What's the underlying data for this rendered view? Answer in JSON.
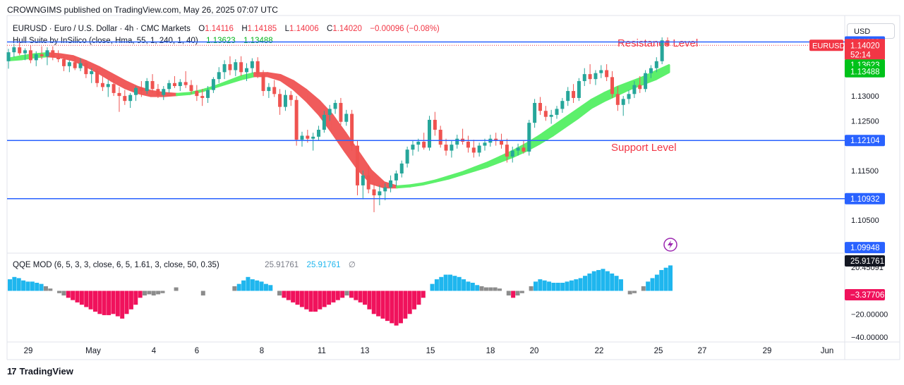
{
  "publisher_line": "CROWNGIMS published on TradingView.com, May 26, 2025 07:07 UTC",
  "currency_button": "USD",
  "footer_logo": "TradingView",
  "symbol_legend": {
    "symbol": "EURUSD",
    "name": "Euro / U.S. Dollar",
    "interval": "4h",
    "source": "CMC Markets",
    "open_label": "O",
    "open": "1.14116",
    "high_label": "H",
    "high": "1.14185",
    "low_label": "L",
    "low": "1.14006",
    "close_label": "C",
    "close": "1.14020",
    "change": "−0.00096 (−0.08%)"
  },
  "hull_legend": {
    "label": "Hull Suite by InSilico (close, Hma, 55, 1, 240, 1, 40)",
    "value1": "1.13623",
    "value2": "1.13488"
  },
  "qqe_legend": {
    "label": "QQE MOD (6, 5, 3, 3, close, 6, 5, 1.61, 3, close, 50, 0.35)",
    "value1": "25.91761",
    "value2": "25.91761",
    "value3": "∅"
  },
  "annotations": {
    "resistance": "Resistance Level",
    "support": "Support Level"
  },
  "colors": {
    "up": "#26a69a",
    "down": "#ef5350",
    "hull_up": "#5cf06b",
    "hull_down": "#f05b5b",
    "level_line": "#2962ff",
    "qqe_pos": "#1fb6ee",
    "qqe_neg": "#f0125c",
    "qqe_neutral": "#8c8c8c",
    "annotation": "#f23645"
  },
  "chart_data": [
    {
      "type": "candlestick",
      "symbol": "EURUSD",
      "interval": "4h",
      "x_ticks": [
        "29",
        "May",
        "4",
        "6",
        "8",
        "11",
        "13",
        "15",
        "18",
        "20",
        "22",
        "25",
        "27",
        "29",
        "Jun"
      ],
      "y_ticks": [
        "1.13000",
        "1.12500",
        "1.11500",
        "1.10500"
      ],
      "ylim": [
        1.0985,
        1.1462
      ],
      "horizontal_levels": [
        {
          "label": "1.14088",
          "value": 1.14088
        },
        {
          "label": "1.12104",
          "value": 1.12104
        },
        {
          "label": "1.10932",
          "value": 1.10932
        }
      ],
      "price_badges": [
        {
          "label": "EURUSD",
          "value": "1.14020",
          "countdown": "52:14",
          "color": "#f23645"
        },
        {
          "label": "",
          "value": "1.13623",
          "color": "#00c21a"
        },
        {
          "label": "",
          "value": "1.13488",
          "color": "#00c21a"
        },
        {
          "label": "",
          "value": "1.09948",
          "color": "#2962ff"
        }
      ],
      "candles": [
        [
          1.137,
          1.1395,
          1.1355,
          1.1388
        ],
        [
          1.1388,
          1.1405,
          1.1378,
          1.1398
        ],
        [
          1.1398,
          1.141,
          1.1382,
          1.1386
        ],
        [
          1.1386,
          1.1396,
          1.1372,
          1.1392
        ],
        [
          1.1392,
          1.1402,
          1.1366,
          1.1372
        ],
        [
          1.1372,
          1.139,
          1.136,
          1.1384
        ],
        [
          1.1384,
          1.14,
          1.1374,
          1.138
        ],
        [
          1.138,
          1.1398,
          1.1362,
          1.1392
        ],
        [
          1.1392,
          1.14,
          1.1372,
          1.1378
        ],
        [
          1.1378,
          1.1392,
          1.1368,
          1.1374
        ],
        [
          1.1374,
          1.138,
          1.135,
          1.136
        ],
        [
          1.136,
          1.1372,
          1.1348,
          1.1368
        ],
        [
          1.1368,
          1.138,
          1.1352,
          1.1356
        ],
        [
          1.1356,
          1.1376,
          1.135,
          1.1366
        ],
        [
          1.1366,
          1.1372,
          1.1336,
          1.1344
        ],
        [
          1.1344,
          1.1356,
          1.1326,
          1.135
        ],
        [
          1.135,
          1.1356,
          1.1318,
          1.1326
        ],
        [
          1.1326,
          1.134,
          1.131,
          1.1318
        ],
        [
          1.1318,
          1.1332,
          1.1298,
          1.1324
        ],
        [
          1.1324,
          1.1336,
          1.13,
          1.1306
        ],
        [
          1.1306,
          1.1318,
          1.1268,
          1.13
        ],
        [
          1.13,
          1.1312,
          1.1282,
          1.129
        ],
        [
          1.129,
          1.1306,
          1.1276,
          1.1302
        ],
        [
          1.1302,
          1.132,
          1.129,
          1.1316
        ],
        [
          1.1316,
          1.133,
          1.1298,
          1.131
        ],
        [
          1.131,
          1.1336,
          1.1304,
          1.133
        ],
        [
          1.133,
          1.1344,
          1.1306,
          1.1314
        ],
        [
          1.1314,
          1.1324,
          1.1296,
          1.1302
        ],
        [
          1.1302,
          1.132,
          1.1292,
          1.1314
        ],
        [
          1.1314,
          1.1332,
          1.1306,
          1.1326
        ],
        [
          1.1326,
          1.134,
          1.1316,
          1.132
        ],
        [
          1.132,
          1.1334,
          1.131,
          1.1328
        ],
        [
          1.1328,
          1.135,
          1.1316,
          1.1322
        ],
        [
          1.1322,
          1.1332,
          1.1304,
          1.131
        ],
        [
          1.131,
          1.1322,
          1.129,
          1.13
        ],
        [
          1.13,
          1.1314,
          1.128,
          1.1296
        ],
        [
          1.1296,
          1.132,
          1.1286,
          1.1312
        ],
        [
          1.1312,
          1.1338,
          1.1306,
          1.1334
        ],
        [
          1.1334,
          1.1358,
          1.1326,
          1.1348
        ],
        [
          1.1348,
          1.1372,
          1.1334,
          1.1364
        ],
        [
          1.1364,
          1.138,
          1.1342,
          1.1352
        ],
        [
          1.1352,
          1.1374,
          1.134,
          1.1368
        ],
        [
          1.1368,
          1.138,
          1.134,
          1.1348
        ],
        [
          1.1348,
          1.1366,
          1.133,
          1.1356
        ],
        [
          1.1356,
          1.1376,
          1.1346,
          1.137
        ],
        [
          1.137,
          1.1378,
          1.1336,
          1.1344
        ],
        [
          1.1344,
          1.1352,
          1.13,
          1.131
        ],
        [
          1.131,
          1.1326,
          1.1296,
          1.1318
        ],
        [
          1.1318,
          1.1332,
          1.1298,
          1.1304
        ],
        [
          1.1304,
          1.1314,
          1.1262,
          1.1278
        ],
        [
          1.1278,
          1.1312,
          1.127,
          1.1302
        ],
        [
          1.1302,
          1.131,
          1.128,
          1.1292
        ],
        [
          1.1292,
          1.13,
          1.12,
          1.1212
        ],
        [
          1.1212,
          1.1228,
          1.1198,
          1.122
        ],
        [
          1.122,
          1.1232,
          1.1206,
          1.1214
        ],
        [
          1.1214,
          1.1226,
          1.119,
          1.1218
        ],
        [
          1.1218,
          1.124,
          1.121,
          1.1232
        ],
        [
          1.1232,
          1.127,
          1.1226,
          1.1262
        ],
        [
          1.1262,
          1.1282,
          1.125,
          1.1274
        ],
        [
          1.1274,
          1.1292,
          1.1264,
          1.1286
        ],
        [
          1.1286,
          1.1296,
          1.1242,
          1.1248
        ],
        [
          1.1248,
          1.1272,
          1.124,
          1.1264
        ],
        [
          1.1264,
          1.1272,
          1.119,
          1.12
        ],
        [
          1.12,
          1.121,
          1.11,
          1.112
        ],
        [
          1.112,
          1.115,
          1.1092,
          1.114
        ],
        [
          1.114,
          1.116,
          1.1104,
          1.1112
        ],
        [
          1.1112,
          1.1126,
          1.1066,
          1.11
        ],
        [
          1.11,
          1.112,
          1.108,
          1.1108
        ],
        [
          1.1108,
          1.1124,
          1.109,
          1.1116
        ],
        [
          1.1116,
          1.114,
          1.1106,
          1.113
        ],
        [
          1.113,
          1.115,
          1.1118,
          1.1144
        ],
        [
          1.1144,
          1.117,
          1.1136,
          1.1164
        ],
        [
          1.1164,
          1.1198,
          1.1156,
          1.1192
        ],
        [
          1.1192,
          1.121,
          1.118,
          1.1202
        ],
        [
          1.1202,
          1.1214,
          1.1188,
          1.1208
        ],
        [
          1.1208,
          1.1226,
          1.1192,
          1.1196
        ],
        [
          1.1196,
          1.126,
          1.119,
          1.1252
        ],
        [
          1.1252,
          1.1268,
          1.122,
          1.1232
        ],
        [
          1.1232,
          1.124,
          1.1196,
          1.1202
        ],
        [
          1.1202,
          1.1214,
          1.118,
          1.119
        ],
        [
          1.119,
          1.121,
          1.1176,
          1.1202
        ],
        [
          1.1202,
          1.1222,
          1.1194,
          1.1214
        ],
        [
          1.1214,
          1.1234,
          1.1202,
          1.1208
        ],
        [
          1.1208,
          1.122,
          1.1186,
          1.1196
        ],
        [
          1.1196,
          1.1212,
          1.1176,
          1.1186
        ],
        [
          1.1186,
          1.1206,
          1.1178,
          1.12
        ],
        [
          1.12,
          1.1214,
          1.119,
          1.1206
        ],
        [
          1.1206,
          1.1222,
          1.1198,
          1.1214
        ],
        [
          1.1214,
          1.1226,
          1.12,
          1.121
        ],
        [
          1.121,
          1.1224,
          1.1194,
          1.1202
        ],
        [
          1.1202,
          1.1214,
          1.1166,
          1.1178
        ],
        [
          1.1178,
          1.1198,
          1.1166,
          1.119
        ],
        [
          1.119,
          1.1204,
          1.118,
          1.1196
        ],
        [
          1.1196,
          1.121,
          1.1184,
          1.1188
        ],
        [
          1.1188,
          1.1252,
          1.118,
          1.1246
        ],
        [
          1.1246,
          1.1294,
          1.1236,
          1.1286
        ],
        [
          1.1286,
          1.1298,
          1.1262,
          1.127
        ],
        [
          1.127,
          1.128,
          1.125,
          1.1258
        ],
        [
          1.1258,
          1.1272,
          1.1244,
          1.1262
        ],
        [
          1.1262,
          1.128,
          1.1254,
          1.1274
        ],
        [
          1.1274,
          1.1296,
          1.1266,
          1.129
        ],
        [
          1.129,
          1.1318,
          1.128,
          1.131
        ],
        [
          1.131,
          1.1324,
          1.1286,
          1.1296
        ],
        [
          1.1296,
          1.1336,
          1.129,
          1.133
        ],
        [
          1.133,
          1.1356,
          1.132,
          1.1344
        ],
        [
          1.1344,
          1.1364,
          1.1324,
          1.1334
        ],
        [
          1.1334,
          1.1352,
          1.1322,
          1.1346
        ],
        [
          1.1346,
          1.1362,
          1.1336,
          1.1352
        ],
        [
          1.1352,
          1.1364,
          1.133,
          1.1338
        ],
        [
          1.1338,
          1.135,
          1.1296,
          1.1304
        ],
        [
          1.1304,
          1.132,
          1.127,
          1.1282
        ],
        [
          1.1282,
          1.13,
          1.126,
          1.1294
        ],
        [
          1.1294,
          1.1312,
          1.1284,
          1.1304
        ],
        [
          1.1304,
          1.133,
          1.1296,
          1.1322
        ],
        [
          1.1322,
          1.134,
          1.1306,
          1.1314
        ],
        [
          1.1314,
          1.1352,
          1.1308,
          1.1346
        ],
        [
          1.1346,
          1.1362,
          1.1336,
          1.1356
        ],
        [
          1.1356,
          1.1378,
          1.1348,
          1.137
        ],
        [
          1.137,
          1.1418,
          1.1364,
          1.1412
        ],
        [
          1.1412,
          1.1418,
          1.14,
          1.1402
        ]
      ],
      "hull_band_points": [
        [
          1.1375,
          1.1372
        ],
        [
          1.138,
          1.1374
        ],
        [
          1.1384,
          1.1378
        ],
        [
          1.1386,
          1.138
        ],
        [
          1.1384,
          1.1378
        ],
        [
          1.138,
          1.1372
        ],
        [
          1.137,
          1.136
        ],
        [
          1.1358,
          1.1346
        ],
        [
          1.1344,
          1.133
        ],
        [
          1.133,
          1.1316
        ],
        [
          1.1318,
          1.1306
        ],
        [
          1.131,
          1.13
        ],
        [
          1.1306,
          1.13
        ],
        [
          1.1304,
          1.1302
        ],
        [
          1.1306,
          1.1304
        ],
        [
          1.1312,
          1.131
        ],
        [
          1.132,
          1.1318
        ],
        [
          1.133,
          1.1326
        ],
        [
          1.134,
          1.1334
        ],
        [
          1.1346,
          1.134
        ],
        [
          1.1346,
          1.134
        ],
        [
          1.1342,
          1.1332
        ],
        [
          1.133,
          1.1314
        ],
        [
          1.1312,
          1.129
        ],
        [
          1.129,
          1.1262
        ],
        [
          1.1262,
          1.1226
        ],
        [
          1.1226,
          1.1188
        ],
        [
          1.1188,
          1.1152
        ],
        [
          1.115,
          1.1124
        ],
        [
          1.1126,
          1.1116
        ],
        [
          1.1118,
          1.1116
        ],
        [
          1.112,
          1.1118
        ],
        [
          1.1124,
          1.1122
        ],
        [
          1.113,
          1.1128
        ],
        [
          1.1138,
          1.1134
        ],
        [
          1.1146,
          1.1142
        ],
        [
          1.1156,
          1.115
        ],
        [
          1.1166,
          1.1158
        ],
        [
          1.1178,
          1.1168
        ],
        [
          1.119,
          1.1178
        ],
        [
          1.1204,
          1.119
        ],
        [
          1.122,
          1.1204
        ],
        [
          1.1238,
          1.122
        ],
        [
          1.1256,
          1.1238
        ],
        [
          1.1274,
          1.1256
        ],
        [
          1.1292,
          1.1276
        ],
        [
          1.1306,
          1.129
        ],
        [
          1.1318,
          1.1302
        ],
        [
          1.1328,
          1.1314
        ],
        [
          1.1338,
          1.1324
        ],
        [
          1.135,
          1.1334
        ],
        [
          1.1362,
          1.1348
        ]
      ]
    },
    {
      "type": "bar",
      "name": "QQE MOD",
      "y_ticks": [
        "20.45091",
        "−20.00000",
        "−40.00000"
      ],
      "ylim": [
        -43,
        32
      ],
      "price_badges": [
        {
          "value": "25.91761",
          "color": "#131722"
        },
        {
          "value": "−3.37706",
          "color": "#f0125c"
        }
      ],
      "values": [
        10,
        12,
        11,
        9,
        8,
        8,
        7,
        6,
        4,
        2,
        0,
        -2,
        -4,
        -6,
        -8,
        -10,
        -12,
        -14,
        -16,
        -18,
        -20,
        -21,
        -21,
        -20,
        -22,
        -24,
        -20,
        -16,
        -12,
        -6,
        -4,
        -3,
        -4,
        -3,
        -2,
        0,
        0,
        3,
        0,
        0,
        0,
        0,
        0,
        -4,
        0,
        0,
        0,
        0,
        0,
        0,
        4,
        6,
        9,
        12,
        10,
        9,
        8,
        6,
        5,
        0,
        -4,
        -6,
        -8,
        -10,
        -12,
        -14,
        -16,
        -18,
        -18,
        -16,
        -14,
        -12,
        -10,
        -8,
        -6,
        -4,
        -6,
        -8,
        -10,
        -12,
        -16,
        -20,
        -22,
        -24,
        -26,
        -28,
        -30,
        -28,
        -24,
        -20,
        -16,
        -12,
        -6,
        0,
        6,
        10,
        12,
        14,
        14,
        13,
        12,
        10,
        8,
        7,
        5,
        4,
        3,
        3,
        3,
        2,
        0,
        -4,
        -6,
        -4,
        -2,
        0,
        4,
        8,
        10,
        9,
        8,
        7,
        7,
        7,
        8,
        9,
        10,
        11,
        13,
        15,
        17,
        18,
        19,
        17,
        15,
        13,
        10,
        0,
        -3,
        -2,
        0,
        4,
        8,
        11,
        14,
        18,
        20,
        22
      ],
      "value_states": "positive=#1fb6ee, negative=#f0125c, neutral=#8c8c8c"
    }
  ]
}
